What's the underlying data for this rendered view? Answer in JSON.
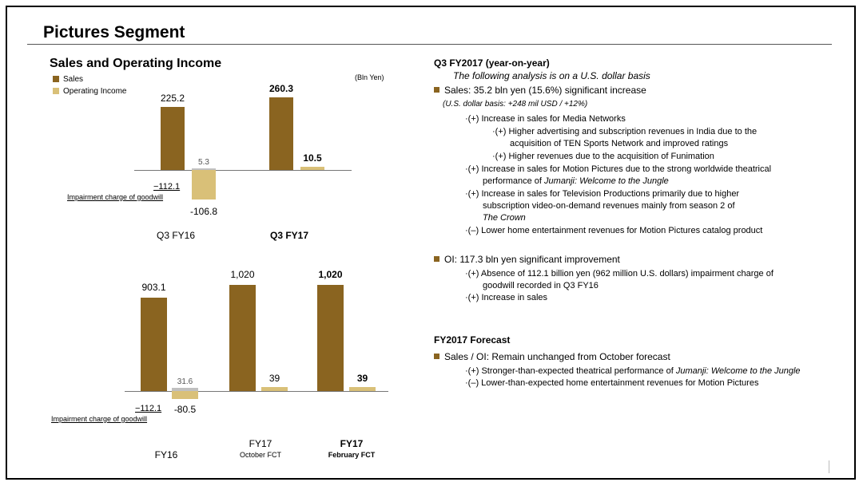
{
  "page": {
    "title": "Pictures Segment"
  },
  "colors": {
    "sales": "#8a6420",
    "oi": "#d9c078",
    "impairment": "#c0c0c0"
  },
  "left": {
    "subtitle": "Sales and Operating Income",
    "legend": {
      "sales": "Sales",
      "oi": "Operating Income"
    },
    "unit": "(Bln Yen)"
  },
  "chart_data": [
    {
      "type": "bar",
      "title": "Sales and Operating Income (Quarterly)",
      "unit": "Bln Yen",
      "categories": [
        "Q3 FY16",
        "Q3 FY17"
      ],
      "series": [
        {
          "name": "Sales",
          "values": [
            225.2,
            260.3
          ]
        },
        {
          "name": "Operating Income",
          "values": [
            -106.8,
            10.5
          ]
        }
      ],
      "labels": {
        "sales": [
          "225.2",
          "260.3"
        ],
        "oi": [
          "-106.8",
          "10.5"
        ],
        "oi_excl": "5.3",
        "impairment": "−112.1"
      },
      "oi_excluding_impairment": 5.3,
      "impairment": -112.1,
      "impairment_note": "Impairment charge of goodwill"
    },
    {
      "type": "bar",
      "title": "Sales and Operating Income (Fiscal Year)",
      "unit": "Bln Yen",
      "categories": [
        "FY16",
        "FY17",
        "FY17"
      ],
      "category_subtitles": [
        "",
        "October FCT",
        "February FCT"
      ],
      "series": [
        {
          "name": "Sales",
          "values": [
            903.1,
            1020,
            1020
          ]
        },
        {
          "name": "Operating Income",
          "values": [
            -80.5,
            39,
            39
          ]
        }
      ],
      "labels": {
        "sales": [
          "903.1",
          "1,020",
          "1,020"
        ],
        "oi": [
          "-80.5",
          "39",
          "39"
        ],
        "oi_excl": "31.6",
        "impairment": "−112.1"
      },
      "oi_excluding_impairment": 31.6,
      "impairment": -112.1,
      "impairment_note": "Impairment charge of goodwill"
    }
  ],
  "right": {
    "q3_heading": "Q3 FY2017 (year-on-year)",
    "q3_basis": "The following analysis is on a U.S. dollar basis",
    "sales_bullet": "Sales: 35.2 bln yen (15.6%) significant increase",
    "sales_usd": "(U.S. dollar basis: +248 mil USD / +12%)",
    "sales_items": [
      "·(+) Increase in sales for Media Networks",
      "·(+) Higher advertising and subscription revenues in India due to the",
      "acquisition of TEN Sports Network and improved ratings",
      "·(+) Higher revenues due to the acquisition of Funimation",
      "·(+) Increase in sales for Motion Pictures due to the strong worldwide theatrical",
      "performance of",
      "Jumanji: Welcome to the Jungle",
      "·(+) Increase in sales for Television Productions primarily due to higher",
      "subscription video-on-demand revenues mainly from season 2 of",
      "The Crown",
      "·(–) Lower home entertainment revenues for Motion Pictures catalog product"
    ],
    "oi_bullet": "OI: 117.3 bln yen significant improvement",
    "oi_items": [
      "·(+) Absence of 112.1 billion yen (962 million U.S. dollars) impairment charge of",
      "goodwill recorded in Q3 FY16",
      "·(+) Increase in sales"
    ],
    "fc_heading": "FY2017 Forecast",
    "fc_bullet": "Sales / OI: Remain unchanged from October forecast",
    "fc_items": [
      "·(+) Stronger-than-expected theatrical performance of",
      "Jumanji: Welcome to the Jungle",
      "·(–) Lower-than-expected home entertainment revenues for Motion Pictures"
    ]
  }
}
